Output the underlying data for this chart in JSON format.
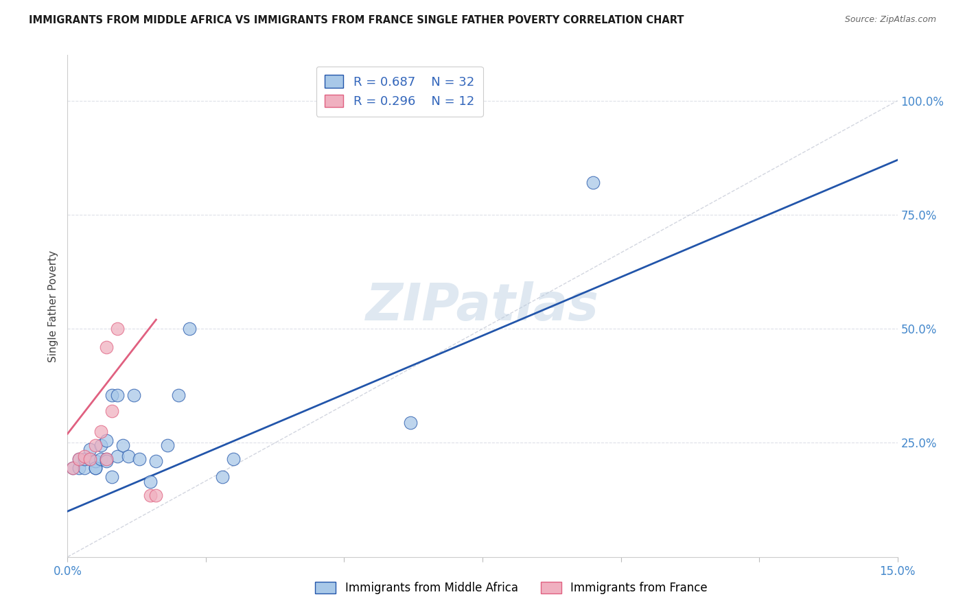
{
  "title": "IMMIGRANTS FROM MIDDLE AFRICA VS IMMIGRANTS FROM FRANCE SINGLE FATHER POVERTY CORRELATION CHART",
  "source": "Source: ZipAtlas.com",
  "ylabel": "Single Father Poverty",
  "y_tick_labels": [
    "100.0%",
    "75.0%",
    "50.0%",
    "25.0%"
  ],
  "y_tick_values": [
    1.0,
    0.75,
    0.5,
    0.25
  ],
  "xlim": [
    0.0,
    0.15
  ],
  "ylim": [
    0.0,
    1.1
  ],
  "legend_r1": "R = 0.687",
  "legend_n1": "N = 32",
  "legend_r2": "R = 0.296",
  "legend_n2": "N = 12",
  "legend_label1": "Immigrants from Middle Africa",
  "legend_label2": "Immigrants from France",
  "color_blue": "#a8c8e8",
  "color_pink": "#f0b0c0",
  "color_blue_dark": "#2255aa",
  "color_pink_dark": "#e06080",
  "color_dashed": "#c8ccd8",
  "watermark": "ZIPatlas",
  "blue_points_x": [
    0.001,
    0.002,
    0.002,
    0.003,
    0.003,
    0.004,
    0.004,
    0.005,
    0.005,
    0.005,
    0.006,
    0.006,
    0.007,
    0.007,
    0.007,
    0.008,
    0.008,
    0.009,
    0.009,
    0.01,
    0.011,
    0.012,
    0.013,
    0.015,
    0.016,
    0.018,
    0.02,
    0.022,
    0.028,
    0.03,
    0.062,
    0.095
  ],
  "blue_points_y": [
    0.195,
    0.195,
    0.215,
    0.195,
    0.215,
    0.215,
    0.235,
    0.195,
    0.21,
    0.195,
    0.215,
    0.245,
    0.215,
    0.21,
    0.255,
    0.175,
    0.355,
    0.355,
    0.22,
    0.245,
    0.22,
    0.355,
    0.215,
    0.165,
    0.21,
    0.245,
    0.355,
    0.5,
    0.175,
    0.215,
    0.295,
    0.82
  ],
  "pink_points_x": [
    0.001,
    0.002,
    0.003,
    0.004,
    0.005,
    0.006,
    0.007,
    0.007,
    0.008,
    0.009,
    0.015,
    0.016
  ],
  "pink_points_y": [
    0.195,
    0.215,
    0.22,
    0.215,
    0.245,
    0.275,
    0.46,
    0.215,
    0.32,
    0.5,
    0.135,
    0.135
  ],
  "blue_line_x": [
    0.0,
    0.15
  ],
  "blue_line_y": [
    0.1,
    0.87
  ],
  "pink_line_x": [
    0.0,
    0.016
  ],
  "pink_line_y": [
    0.27,
    0.52
  ],
  "dashed_line_x": [
    0.0,
    0.15
  ],
  "dashed_line_y": [
    0.0,
    1.0
  ],
  "grid_color": "#dde0e8",
  "background_color": "#ffffff",
  "title_color": "#1a1a1a",
  "source_color": "#666666",
  "tick_color": "#4488cc",
  "ylabel_color": "#404040"
}
